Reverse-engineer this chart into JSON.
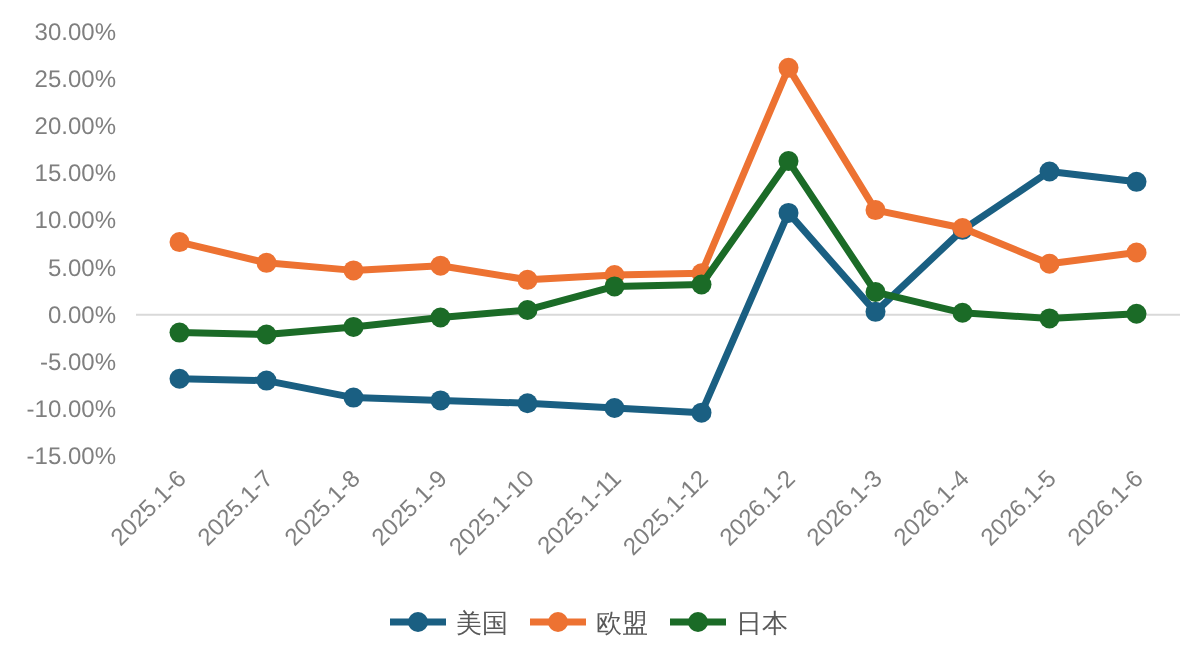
{
  "chart_data": {
    "type": "line",
    "categories": [
      "2025.1-6",
      "2025.1-7",
      "2025.1-8",
      "2025.1-9",
      "2025.1-10",
      "2025.1-11",
      "2025.1-12",
      "2026.1-2",
      "2026.1-3",
      "2026.1-4",
      "2026.1-5",
      "2026.1-6"
    ],
    "series": [
      {
        "name": "美国",
        "color": "#1a5f82",
        "values": [
          -6.8,
          -7.0,
          -8.8,
          -9.1,
          -9.4,
          -9.9,
          -10.4,
          10.8,
          0.3,
          9.0,
          15.2,
          14.1
        ]
      },
      {
        "name": "欧盟",
        "color": "#ed7232",
        "values": [
          7.7,
          5.5,
          4.7,
          5.2,
          3.7,
          4.2,
          4.4,
          26.2,
          11.1,
          9.2,
          5.4,
          6.6
        ]
      },
      {
        "name": "日本",
        "color": "#1b6b27",
        "values": [
          -1.9,
          -2.1,
          -1.3,
          -0.3,
          0.5,
          3.0,
          3.2,
          16.3,
          2.4,
          0.2,
          -0.4,
          0.1
        ]
      }
    ],
    "ylim": [
      -15,
      30
    ],
    "yticks": [
      {
        "value": -15,
        "label": "-15.00%"
      },
      {
        "value": -10,
        "label": "-10.00%"
      },
      {
        "value": -5,
        "label": "-5.00%"
      },
      {
        "value": 0,
        "label": "0.00%"
      },
      {
        "value": 5,
        "label": "5.00%"
      },
      {
        "value": 10,
        "label": "10.00%"
      },
      {
        "value": 15,
        "label": "15.00%"
      },
      {
        "value": 20,
        "label": "20.00%"
      },
      {
        "value": 25,
        "label": "25.00%"
      },
      {
        "value": 30,
        "label": "30.00%"
      }
    ],
    "ref_lines": [
      {
        "axis": "y",
        "value": 0,
        "color": "#d9d9d9"
      }
    ],
    "grid": false,
    "legend": "bottom",
    "marker": "circle",
    "line_style": "solid"
  }
}
